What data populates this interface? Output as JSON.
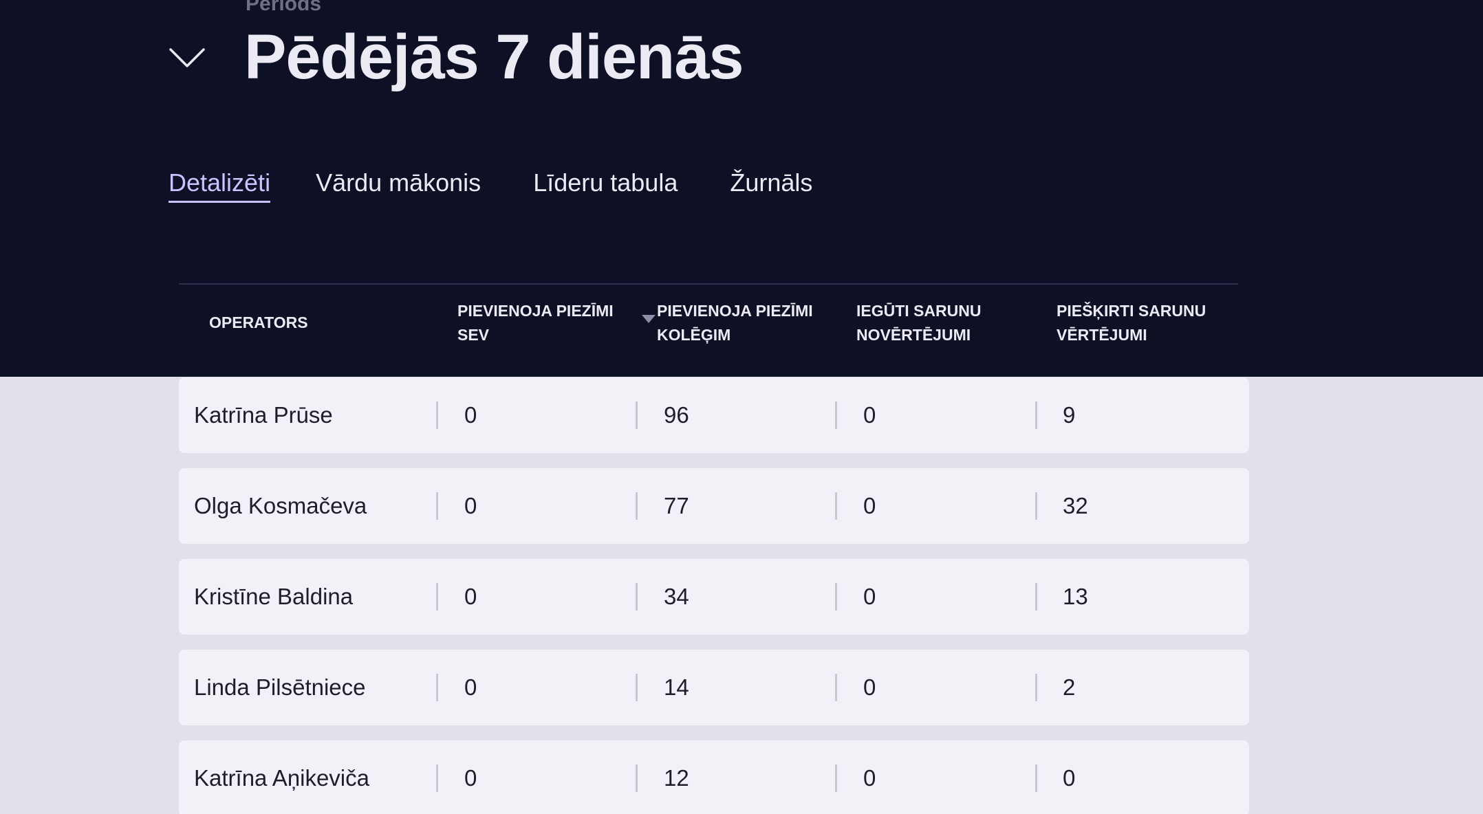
{
  "period": {
    "label": "Periods",
    "title": "Pēdējās 7 dienās",
    "toggle_icon": "chevron-down-icon"
  },
  "tabs": [
    {
      "label": "Detalizēti",
      "active": true
    },
    {
      "label": "Vārdu mākonis",
      "active": false
    },
    {
      "label": "Līderu tabula",
      "active": false
    },
    {
      "label": "Žurnāls",
      "active": false
    }
  ],
  "table": {
    "columns": [
      {
        "line1": "OPERATORS",
        "line2": ""
      },
      {
        "line1": "PIEVIENOJA PIEZĪMI",
        "line2": "SEV"
      },
      {
        "line1": "PIEVIENOJA PIEZĪMI",
        "line2": "KOLĒĢIM"
      },
      {
        "line1": "IEGŪTI SARUNU",
        "line2": "NOVĒRTĒJUMI"
      },
      {
        "line1": "PIEŠĶIRTI SARUNU",
        "line2": "VĒRTĒJUMI"
      }
    ],
    "sort_icon": "sort-descending-icon",
    "rows": [
      {
        "operator": "Katrīna Prūse",
        "notes_self": "0",
        "notes_colleague": "96",
        "ratings_received": "0",
        "ratings_given": "9"
      },
      {
        "operator": "Olga Kosmačeva",
        "notes_self": "0",
        "notes_colleague": "77",
        "ratings_received": "0",
        "ratings_given": "32"
      },
      {
        "operator": "Kristīne Baldina",
        "notes_self": "0",
        "notes_colleague": "34",
        "ratings_received": "0",
        "ratings_given": "13"
      },
      {
        "operator": "Linda Pilsētniece",
        "notes_self": "0",
        "notes_colleague": "14",
        "ratings_received": "0",
        "ratings_given": "2"
      },
      {
        "operator": "Katrīna Aņikeviča",
        "notes_self": "0",
        "notes_colleague": "12",
        "ratings_received": "0",
        "ratings_given": "0"
      }
    ]
  },
  "colors": {
    "header_bg": "#0e1026",
    "page_bg": "#e2e1ea",
    "row_bg": "#f1f1f7",
    "accent": "#c9c4ff"
  }
}
